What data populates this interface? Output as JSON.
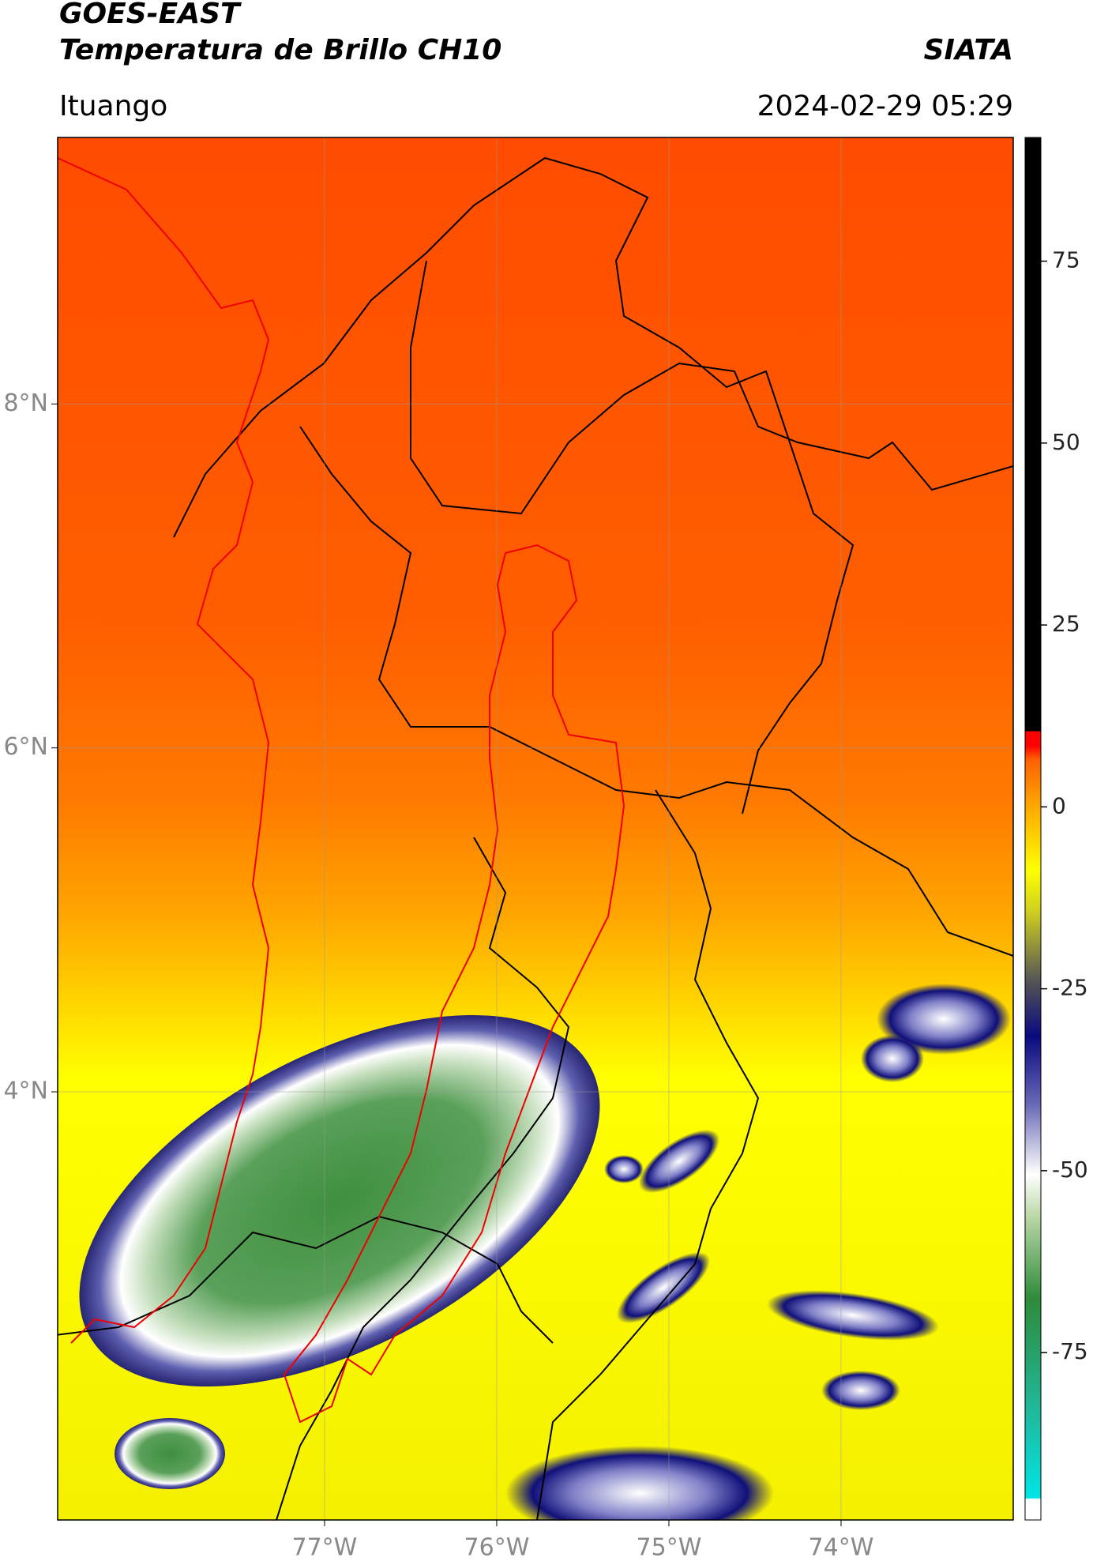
{
  "header": {
    "title": "GOES-EAST",
    "subtitle": "Temperatura de Brillo CH10",
    "brand": "SIATA",
    "location": "Ituango",
    "datetime": "2024-02-29 05:29"
  },
  "map": {
    "xlim": [
      -78.55,
      -73.0
    ],
    "ylim": [
      1.51,
      9.55
    ],
    "xticks": [
      {
        "value": -77,
        "label": "77°W"
      },
      {
        "value": -76,
        "label": "76°W"
      },
      {
        "value": -75,
        "label": "75°W"
      },
      {
        "value": -74,
        "label": "74°W"
      }
    ],
    "yticks": [
      {
        "value": 4,
        "label": "4°N"
      },
      {
        "value": 6,
        "label": "6°N"
      },
      {
        "value": 8,
        "label": "8°N"
      }
    ],
    "grid": true
  },
  "colorbar": {
    "clim": [
      -98,
      92
    ],
    "ticks": [
      75,
      50,
      25,
      0,
      -25,
      -50,
      -75
    ]
  }
}
